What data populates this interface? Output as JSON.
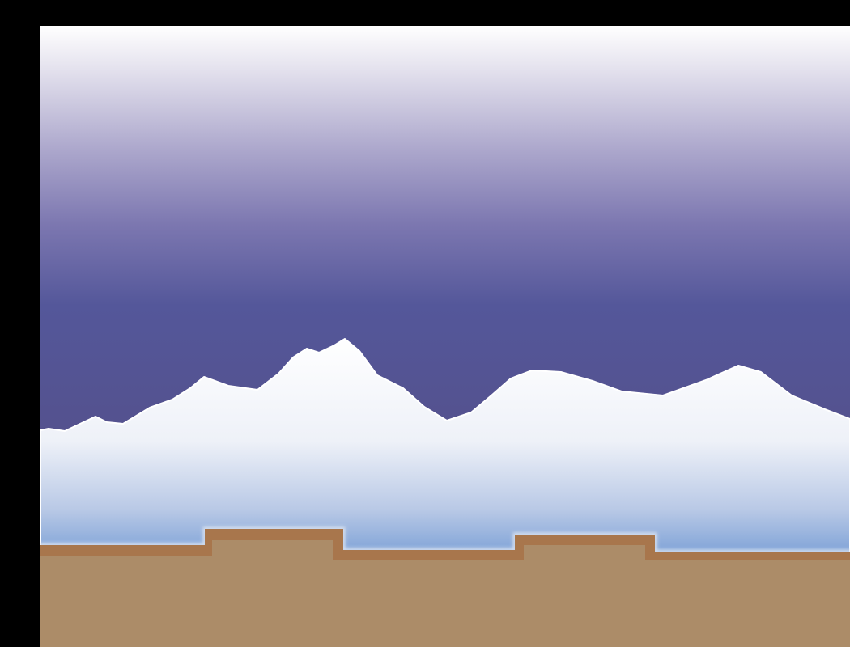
{
  "scene": {
    "type": "side-scrolling game level",
    "colors": {
      "letterbox": "#000000",
      "sky_top": "#ffffff",
      "sky_mid": "#54579a",
      "sky_bottom": "#55487a",
      "mountain_top": "#ffffff",
      "mountain_bottom": "#6f98d3",
      "ground_fill": "#ac8c68",
      "ground_edge": "#a8764c",
      "ground_highlight": "#dfe6f2"
    },
    "elements": [
      "sky-gradient",
      "snowy-mountain-range",
      "dirt-ground-terrain",
      "raised-ground-platform-1",
      "raised-ground-platform-2"
    ]
  }
}
